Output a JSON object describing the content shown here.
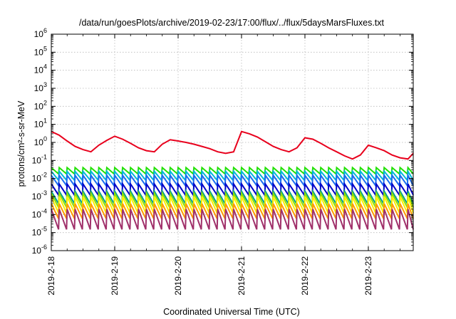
{
  "chart_data": {
    "type": "line",
    "title": "/data/run/goesPlots/archive/2019-02-23/17:00/flux/../flux/5daysMarsFluxes.txt",
    "xlabel": "Coordinated Universal Time (UTC)",
    "ylabel": "protons/cm²-s-sr-MeV",
    "y_scale": "log",
    "ylim": [
      1e-06,
      1000000.0
    ],
    "y_ticks": [
      {
        "base": "10",
        "exp": "-6"
      },
      {
        "base": "10",
        "exp": "-5"
      },
      {
        "base": "10",
        "exp": "-4"
      },
      {
        "base": "10",
        "exp": "-3"
      },
      {
        "base": "10",
        "exp": "-2"
      },
      {
        "base": "10",
        "exp": "-1"
      },
      {
        "base": "10",
        "exp": "0"
      },
      {
        "base": "10",
        "exp": "1"
      },
      {
        "base": "10",
        "exp": "2"
      },
      {
        "base": "10",
        "exp": "3"
      },
      {
        "base": "10",
        "exp": "4"
      },
      {
        "base": "10",
        "exp": "5"
      },
      {
        "base": "10",
        "exp": "6"
      }
    ],
    "xlim": [
      "2019-02-18T00:00",
      "2019-02-23T17:00"
    ],
    "x_ticks": [
      "2019-2-18",
      "2019-2-19",
      "2019-2-20",
      "2019-2-21",
      "2019-2-22",
      "2019-2-23"
    ],
    "grid": true,
    "legend": "none",
    "sawtooth_period_hours": 3,
    "series": [
      {
        "color": "#e8001c",
        "x": [
          "2019-02-18T00:00",
          "2019-02-18T03:00",
          "2019-02-18T06:00",
          "2019-02-18T09:00",
          "2019-02-18T12:00",
          "2019-02-18T15:00",
          "2019-02-18T18:00",
          "2019-02-18T21:00",
          "2019-02-19T00:00",
          "2019-02-19T03:00",
          "2019-02-19T06:00",
          "2019-02-19T09:00",
          "2019-02-19T12:00",
          "2019-02-19T15:00",
          "2019-02-19T18:00",
          "2019-02-19T21:00",
          "2019-02-20T00:00",
          "2019-02-20T03:00",
          "2019-02-20T06:00",
          "2019-02-20T09:00",
          "2019-02-20T12:00",
          "2019-02-20T15:00",
          "2019-02-20T18:00",
          "2019-02-20T21:00",
          "2019-02-21T00:00",
          "2019-02-21T03:00",
          "2019-02-21T06:00",
          "2019-02-21T09:00",
          "2019-02-21T12:00",
          "2019-02-21T15:00",
          "2019-02-21T18:00",
          "2019-02-21T21:00",
          "2019-02-22T00:00",
          "2019-02-22T03:00",
          "2019-02-22T06:00",
          "2019-02-22T09:00",
          "2019-02-22T12:00",
          "2019-02-22T15:00",
          "2019-02-22T18:00",
          "2019-02-22T21:00",
          "2019-02-23T00:00",
          "2019-02-23T03:00",
          "2019-02-23T06:00",
          "2019-02-23T09:00",
          "2019-02-23T12:00",
          "2019-02-23T15:00",
          "2019-02-23T17:00"
        ],
        "values": [
          4.0,
          2.5,
          1.2,
          0.6,
          0.4,
          0.3,
          0.7,
          1.3,
          2.2,
          1.5,
          0.9,
          0.5,
          0.35,
          0.3,
          0.8,
          1.4,
          1.2,
          1.0,
          0.8,
          0.6,
          0.45,
          0.3,
          0.25,
          0.3,
          4.0,
          3.0,
          2.0,
          1.1,
          0.6,
          0.4,
          0.3,
          0.5,
          1.8,
          1.5,
          0.9,
          0.5,
          0.3,
          0.18,
          0.12,
          0.2,
          0.7,
          0.5,
          0.35,
          0.2,
          0.14,
          0.12,
          0.25
        ]
      },
      {
        "color": "#22e000",
        "x_start": "2019-02-18T00:00",
        "x_end": "2019-02-23T17:00",
        "peak": 0.04,
        "trough": 0.018
      },
      {
        "color": "#00b8d8",
        "x_start": "2019-02-18T00:00",
        "x_end": "2019-02-23T17:00",
        "peak": 0.025,
        "trough": 0.008
      },
      {
        "color": "#1a6cf0",
        "x_start": "2019-02-18T00:00",
        "x_end": "2019-02-23T17:00",
        "peak": 0.015,
        "trough": 0.004
      },
      {
        "color": "#0000c8",
        "x_start": "2019-02-18T00:00",
        "x_end": "2019-02-23T17:00",
        "peak": 0.005,
        "trough": 0.0012
      },
      {
        "color": "#00a090",
        "x_start": "2019-02-18T00:00",
        "x_end": "2019-02-23T17:00",
        "peak": 0.002,
        "trough": 0.0004
      },
      {
        "color": "#90e000",
        "x_start": "2019-02-18T00:00",
        "x_end": "2019-02-23T17:00",
        "peak": 0.0015,
        "trough": 0.00025
      },
      {
        "color": "#ffee00",
        "x_start": "2019-02-18T00:00",
        "x_end": "2019-02-23T17:00",
        "peak": 0.001,
        "trough": 0.00012
      },
      {
        "color": "#ff9a00",
        "x_start": "2019-02-18T00:00",
        "x_end": "2019-02-23T17:00",
        "peak": 0.0004,
        "trough": 6e-05
      },
      {
        "color": "#a0306a",
        "x_start": "2019-02-18T00:00",
        "x_end": "2019-02-23T17:00",
        "peak": 0.0002,
        "trough": 1.5e-05
      }
    ]
  }
}
